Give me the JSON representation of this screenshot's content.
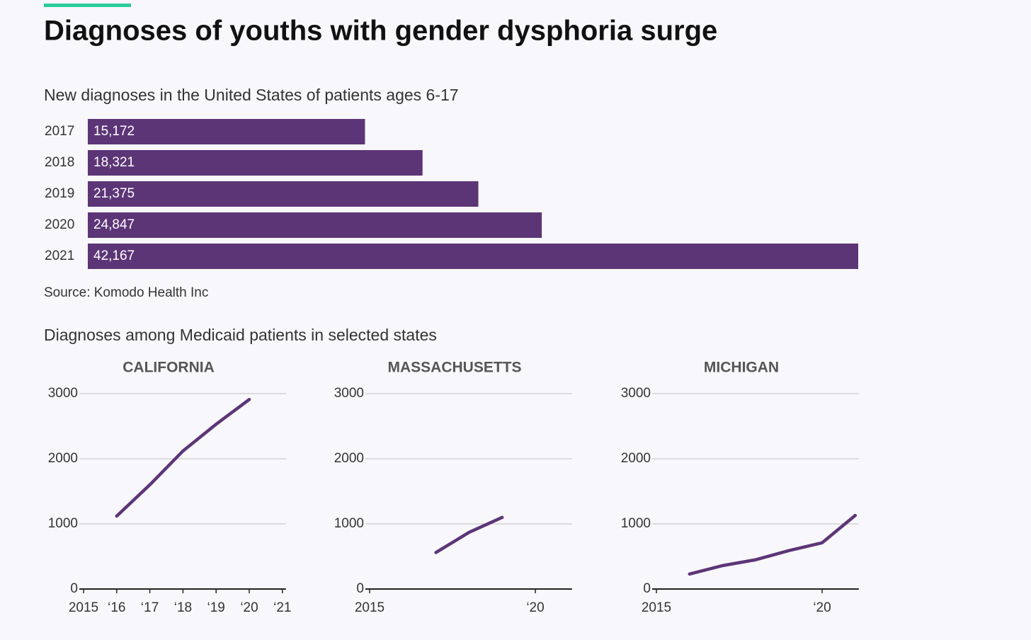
{
  "title": "Diagnoses of youths with gender dysphoria surge",
  "source_note": "Source: Komodo Health Inc",
  "section_title": "Diagnoses among Medicaid patients in selected states",
  "chart_data": [
    {
      "type": "bar",
      "title": "New diagnoses in the United States of patients ages 6-17",
      "categories": [
        "2017",
        "2018",
        "2019",
        "2020",
        "2021"
      ],
      "values": [
        15172,
        18321,
        21375,
        24847,
        42167
      ],
      "value_labels": [
        "15,172",
        "18,321",
        "21,375",
        "24,847",
        "42,167"
      ],
      "color": "#5c3577"
    },
    {
      "type": "line",
      "title": "CALIFORNIA",
      "x": [
        2016,
        2017,
        2018,
        2019,
        2020
      ],
      "values": [
        1120,
        1600,
        2120,
        2530,
        2910
      ],
      "color": "#5c3577",
      "xlim": [
        2015,
        2021
      ],
      "ylim": [
        0,
        3000
      ],
      "yticks": [
        0,
        1000,
        2000,
        3000
      ],
      "xticks": [
        2015,
        {
          "value": 2016,
          "label": "‘16"
        },
        {
          "value": 2017,
          "label": "‘17"
        },
        {
          "value": 2018,
          "label": "‘18"
        },
        {
          "value": 2019,
          "label": "‘19"
        },
        {
          "value": 2020,
          "label": "‘20"
        },
        {
          "value": 2021,
          "label": "‘21"
        }
      ],
      "grid": true
    },
    {
      "type": "line",
      "title": "MASSACHUSETTS",
      "x": [
        2017,
        2018,
        2019
      ],
      "values": [
        560,
        870,
        1100
      ],
      "color": "#5c3577",
      "xlim": [
        2015,
        2021
      ],
      "ylim": [
        0,
        3000
      ],
      "yticks": [
        0,
        1000,
        2000,
        3000
      ],
      "xticks": [
        2015,
        {
          "value": 2020,
          "label": "‘20"
        }
      ],
      "grid": true
    },
    {
      "type": "line",
      "title": "MICHIGAN",
      "x": [
        2016,
        2017,
        2018,
        2019,
        2020,
        2021
      ],
      "values": [
        230,
        360,
        450,
        590,
        710,
        1130
      ],
      "color": "#5c3577",
      "xlim": [
        2015,
        2021
      ],
      "ylim": [
        0,
        3000
      ],
      "yticks": [
        0,
        1000,
        2000,
        3000
      ],
      "xticks": [
        2015,
        {
          "value": 2020,
          "label": "‘20"
        }
      ],
      "grid": true
    }
  ]
}
